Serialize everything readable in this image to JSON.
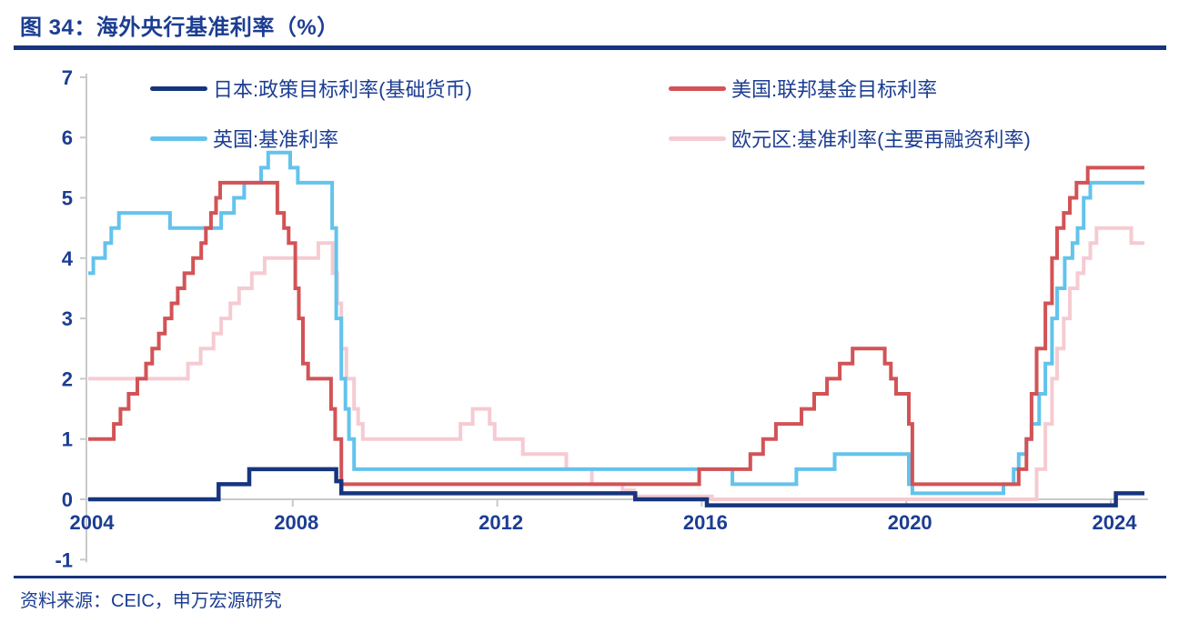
{
  "header": {
    "title": "图 34：海外央行基准利率（%）"
  },
  "source": {
    "text": "资料来源：CEIC，申万宏源研究"
  },
  "colors": {
    "navy_text": "#1C3D92",
    "rule_navy": "#17357E",
    "axis_gray": "#C9C9C9"
  },
  "chart_data": {
    "type": "line",
    "line_style": "step",
    "title": "海外央行基准利率（%）",
    "unit": "%",
    "grid": "off",
    "legend_position": "top-inside",
    "x_range": [
      2004,
      2024.65
    ],
    "y_range": [
      -1,
      7
    ],
    "x_ticks": [
      2004,
      2008,
      2012,
      2016,
      2020,
      2024
    ],
    "y_ticks": [
      7,
      6,
      5,
      4,
      3,
      2,
      1,
      0,
      -1
    ],
    "series": [
      {
        "name": "日本:政策目标利率(基础货币)",
        "color": "#16357D",
        "width": 4.5,
        "points": [
          [
            2004,
            0
          ],
          [
            2006.55,
            0.25
          ],
          [
            2007.15,
            0.5
          ],
          [
            2008.85,
            0.3
          ],
          [
            2008.95,
            0.1
          ],
          [
            2014.7,
            0
          ],
          [
            2016.1,
            -0.1
          ],
          [
            2024.1,
            0.1
          ]
        ]
      },
      {
        "name": "美国:联邦基金目标利率",
        "color": "#D25356",
        "width": 4,
        "points": [
          [
            2004,
            1
          ],
          [
            2004.5,
            1.25
          ],
          [
            2004.63,
            1.5
          ],
          [
            2004.79,
            1.75
          ],
          [
            2004.96,
            2
          ],
          [
            2005.13,
            2.25
          ],
          [
            2005.25,
            2.5
          ],
          [
            2005.38,
            2.75
          ],
          [
            2005.5,
            3
          ],
          [
            2005.63,
            3.25
          ],
          [
            2005.75,
            3.5
          ],
          [
            2005.88,
            3.75
          ],
          [
            2006.05,
            4
          ],
          [
            2006.21,
            4.25
          ],
          [
            2006.3,
            4.5
          ],
          [
            2006.4,
            4.75
          ],
          [
            2006.5,
            5
          ],
          [
            2006.58,
            5.25
          ],
          [
            2007.7,
            4.75
          ],
          [
            2007.83,
            4.5
          ],
          [
            2007.92,
            4.25
          ],
          [
            2008.05,
            3.5
          ],
          [
            2008.12,
            3
          ],
          [
            2008.2,
            2.25
          ],
          [
            2008.3,
            2
          ],
          [
            2008.75,
            1.5
          ],
          [
            2008.83,
            1
          ],
          [
            2008.95,
            0.25
          ],
          [
            2015.95,
            0.5
          ],
          [
            2016.95,
            0.75
          ],
          [
            2017.2,
            1
          ],
          [
            2017.45,
            1.25
          ],
          [
            2017.95,
            1.5
          ],
          [
            2018.2,
            1.75
          ],
          [
            2018.45,
            2
          ],
          [
            2018.7,
            2.25
          ],
          [
            2018.95,
            2.5
          ],
          [
            2019.58,
            2.25
          ],
          [
            2019.7,
            2
          ],
          [
            2019.8,
            1.75
          ],
          [
            2020.05,
            1.25
          ],
          [
            2020.12,
            0.25
          ],
          [
            2022.2,
            0.5
          ],
          [
            2022.35,
            1
          ],
          [
            2022.45,
            1.75
          ],
          [
            2022.55,
            2.5
          ],
          [
            2022.72,
            3.25
          ],
          [
            2022.85,
            4
          ],
          [
            2022.95,
            4.5
          ],
          [
            2023.08,
            4.75
          ],
          [
            2023.2,
            5
          ],
          [
            2023.33,
            5.25
          ],
          [
            2023.55,
            5.5
          ]
        ]
      },
      {
        "name": "英国:基准利率",
        "color": "#63C3EC",
        "width": 4,
        "points": [
          [
            2004,
            3.75
          ],
          [
            2004.1,
            4
          ],
          [
            2004.33,
            4.25
          ],
          [
            2004.45,
            4.5
          ],
          [
            2004.6,
            4.75
          ],
          [
            2005.6,
            4.5
          ],
          [
            2006.6,
            4.75
          ],
          [
            2006.85,
            5
          ],
          [
            2007.05,
            5.25
          ],
          [
            2007.38,
            5.5
          ],
          [
            2007.52,
            5.75
          ],
          [
            2007.95,
            5.5
          ],
          [
            2008.1,
            5.25
          ],
          [
            2008.77,
            4.5
          ],
          [
            2008.85,
            3
          ],
          [
            2008.95,
            2
          ],
          [
            2009.03,
            1.5
          ],
          [
            2009.1,
            1
          ],
          [
            2009.2,
            0.5
          ],
          [
            2016.6,
            0.25
          ],
          [
            2017.85,
            0.5
          ],
          [
            2018.6,
            0.75
          ],
          [
            2020.05,
            0.25
          ],
          [
            2020.12,
            0.1
          ],
          [
            2021.9,
            0.25
          ],
          [
            2022.1,
            0.5
          ],
          [
            2022.2,
            0.75
          ],
          [
            2022.35,
            1
          ],
          [
            2022.45,
            1.25
          ],
          [
            2022.6,
            1.75
          ],
          [
            2022.72,
            2.25
          ],
          [
            2022.85,
            3
          ],
          [
            2022.95,
            3.5
          ],
          [
            2023.1,
            4
          ],
          [
            2023.25,
            4.25
          ],
          [
            2023.35,
            4.5
          ],
          [
            2023.47,
            5
          ],
          [
            2023.6,
            5.25
          ]
        ]
      },
      {
        "name": "欧元区:基准利率(主要再融资利率)",
        "color": "#F5CBD1",
        "width": 4,
        "points": [
          [
            2004,
            2
          ],
          [
            2005.95,
            2.25
          ],
          [
            2006.2,
            2.5
          ],
          [
            2006.45,
            2.75
          ],
          [
            2006.6,
            3
          ],
          [
            2006.78,
            3.25
          ],
          [
            2006.95,
            3.5
          ],
          [
            2007.2,
            3.75
          ],
          [
            2007.45,
            4
          ],
          [
            2008.5,
            4.25
          ],
          [
            2008.78,
            3.75
          ],
          [
            2008.87,
            3.25
          ],
          [
            2008.95,
            2.5
          ],
          [
            2009.05,
            2
          ],
          [
            2009.2,
            1.5
          ],
          [
            2009.28,
            1.25
          ],
          [
            2009.37,
            1
          ],
          [
            2011.28,
            1.25
          ],
          [
            2011.52,
            1.5
          ],
          [
            2011.85,
            1.25
          ],
          [
            2011.95,
            1
          ],
          [
            2012.5,
            0.75
          ],
          [
            2013.35,
            0.5
          ],
          [
            2013.85,
            0.25
          ],
          [
            2014.45,
            0.15
          ],
          [
            2014.68,
            0.05
          ],
          [
            2016.2,
            0
          ],
          [
            2022.55,
            0.5
          ],
          [
            2022.72,
            1.25
          ],
          [
            2022.85,
            2
          ],
          [
            2022.95,
            2.5
          ],
          [
            2023.08,
            3
          ],
          [
            2023.2,
            3.5
          ],
          [
            2023.35,
            3.75
          ],
          [
            2023.47,
            4
          ],
          [
            2023.6,
            4.25
          ],
          [
            2023.72,
            4.5
          ],
          [
            2024.4,
            4.25
          ]
        ]
      }
    ]
  }
}
